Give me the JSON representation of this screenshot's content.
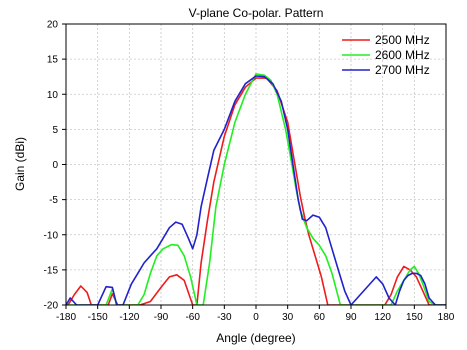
{
  "chart_data": {
    "type": "line",
    "title": "V-plane Co-polar. Pattern",
    "xlabel": "Angle (degree)",
    "ylabel": "Gain (dBi)",
    "xlim": [
      -180,
      180
    ],
    "ylim": [
      -20,
      20
    ],
    "xticks": [
      -180,
      -150,
      -120,
      -90,
      -60,
      -30,
      0,
      30,
      60,
      90,
      120,
      150,
      180
    ],
    "yticks": [
      -20,
      -15,
      -10,
      -5,
      0,
      5,
      10,
      15,
      20
    ],
    "grid": true,
    "legend_position": "top-right",
    "series": [
      {
        "name": "2500 MHz",
        "color": "#ee1c1c",
        "x": [
          -180,
          -178,
          -172,
          -166,
          -160,
          -156,
          -152,
          -140,
          -136,
          -131,
          -124,
          -118,
          -110,
          -100,
          -90,
          -82,
          -75,
          -68,
          -60,
          -56,
          -52,
          -46,
          -40,
          -30,
          -20,
          -10,
          0,
          10,
          20,
          30,
          38,
          42,
          46,
          50,
          56,
          62,
          68,
          75,
          82,
          90,
          100,
          110,
          116,
          122,
          128,
          134,
          140,
          146,
          152,
          158,
          164,
          172,
          180
        ],
        "y": [
          -20,
          -20,
          -18.5,
          -17.3,
          -18.2,
          -20,
          -20,
          -20,
          -18.4,
          -20,
          -20,
          -20,
          -20,
          -19.5,
          -17.5,
          -16,
          -15.7,
          -16.5,
          -20,
          -20,
          -14,
          -8,
          -2.5,
          4,
          8.5,
          11,
          12.3,
          12.3,
          10.5,
          6,
          -1,
          -4.5,
          -7.5,
          -10,
          -13,
          -16,
          -20,
          -20,
          -20,
          -20,
          -20,
          -20,
          -20,
          -20,
          -18.5,
          -16,
          -14.5,
          -15,
          -16,
          -18,
          -20,
          -20,
          -20
        ]
      },
      {
        "name": "2600 MHz",
        "color": "#22ee22",
        "x": [
          -180,
          -168,
          -160,
          -150,
          -142,
          -136,
          -132,
          -126,
          -118,
          -112,
          -106,
          -100,
          -94,
          -88,
          -80,
          -74,
          -68,
          -62,
          -56,
          -50,
          -44,
          -38,
          -30,
          -20,
          -10,
          0,
          8,
          14,
          20,
          28,
          34,
          38,
          42,
          48,
          54,
          60,
          66,
          72,
          80,
          88,
          96,
          104,
          110,
          116,
          122,
          128,
          134,
          140,
          146,
          150,
          154,
          158,
          164,
          170,
          176,
          180
        ],
        "y": [
          -20,
          -20,
          -20,
          -20,
          -20,
          -17.7,
          -20,
          -20,
          -20,
          -20,
          -18.5,
          -15.5,
          -13,
          -12,
          -11.4,
          -11.5,
          -13,
          -16,
          -20,
          -20,
          -14,
          -6,
          0,
          6,
          10,
          12.9,
          12.7,
          12,
          10,
          5,
          0,
          -3.5,
          -6.5,
          -9,
          -10.5,
          -11.5,
          -13,
          -15.5,
          -20,
          -20,
          -20,
          -20,
          -20,
          -20,
          -20,
          -20,
          -18,
          -16.5,
          -15,
          -14.5,
          -15.5,
          -17,
          -19.5,
          -20,
          -20,
          -20
        ]
      },
      {
        "name": "2700 MHz",
        "color": "#2222cc",
        "x": [
          -180,
          -176,
          -170,
          -160,
          -150,
          -142,
          -136,
          -132,
          -126,
          -118,
          -112,
          -106,
          -100,
          -94,
          -88,
          -82,
          -76,
          -70,
          -64,
          -60,
          -56,
          -52,
          -46,
          -40,
          -30,
          -20,
          -10,
          0,
          8,
          16,
          24,
          30,
          36,
          40,
          44,
          48,
          54,
          60,
          66,
          72,
          78,
          84,
          90,
          96,
          102,
          108,
          114,
          120,
          126,
          132,
          136,
          140,
          144,
          148,
          152,
          156,
          160,
          164,
          170,
          176,
          180
        ],
        "y": [
          -20,
          -19,
          -20,
          -20,
          -20,
          -17.4,
          -17.5,
          -20,
          -20,
          -17,
          -15.5,
          -14,
          -13,
          -12,
          -10.5,
          -9,
          -8.2,
          -8.5,
          -10.5,
          -12,
          -10,
          -6,
          -2,
          2,
          5,
          9,
          11.5,
          12.6,
          12.5,
          11.5,
          9,
          5,
          -1,
          -5,
          -7.8,
          -8,
          -7.2,
          -7.5,
          -9,
          -12,
          -15,
          -18,
          -20,
          -19,
          -18,
          -17,
          -16,
          -17,
          -19,
          -20,
          -18,
          -16.5,
          -15.8,
          -15.5,
          -15.5,
          -15.8,
          -17,
          -19,
          -20,
          -20,
          -20
        ]
      }
    ]
  }
}
